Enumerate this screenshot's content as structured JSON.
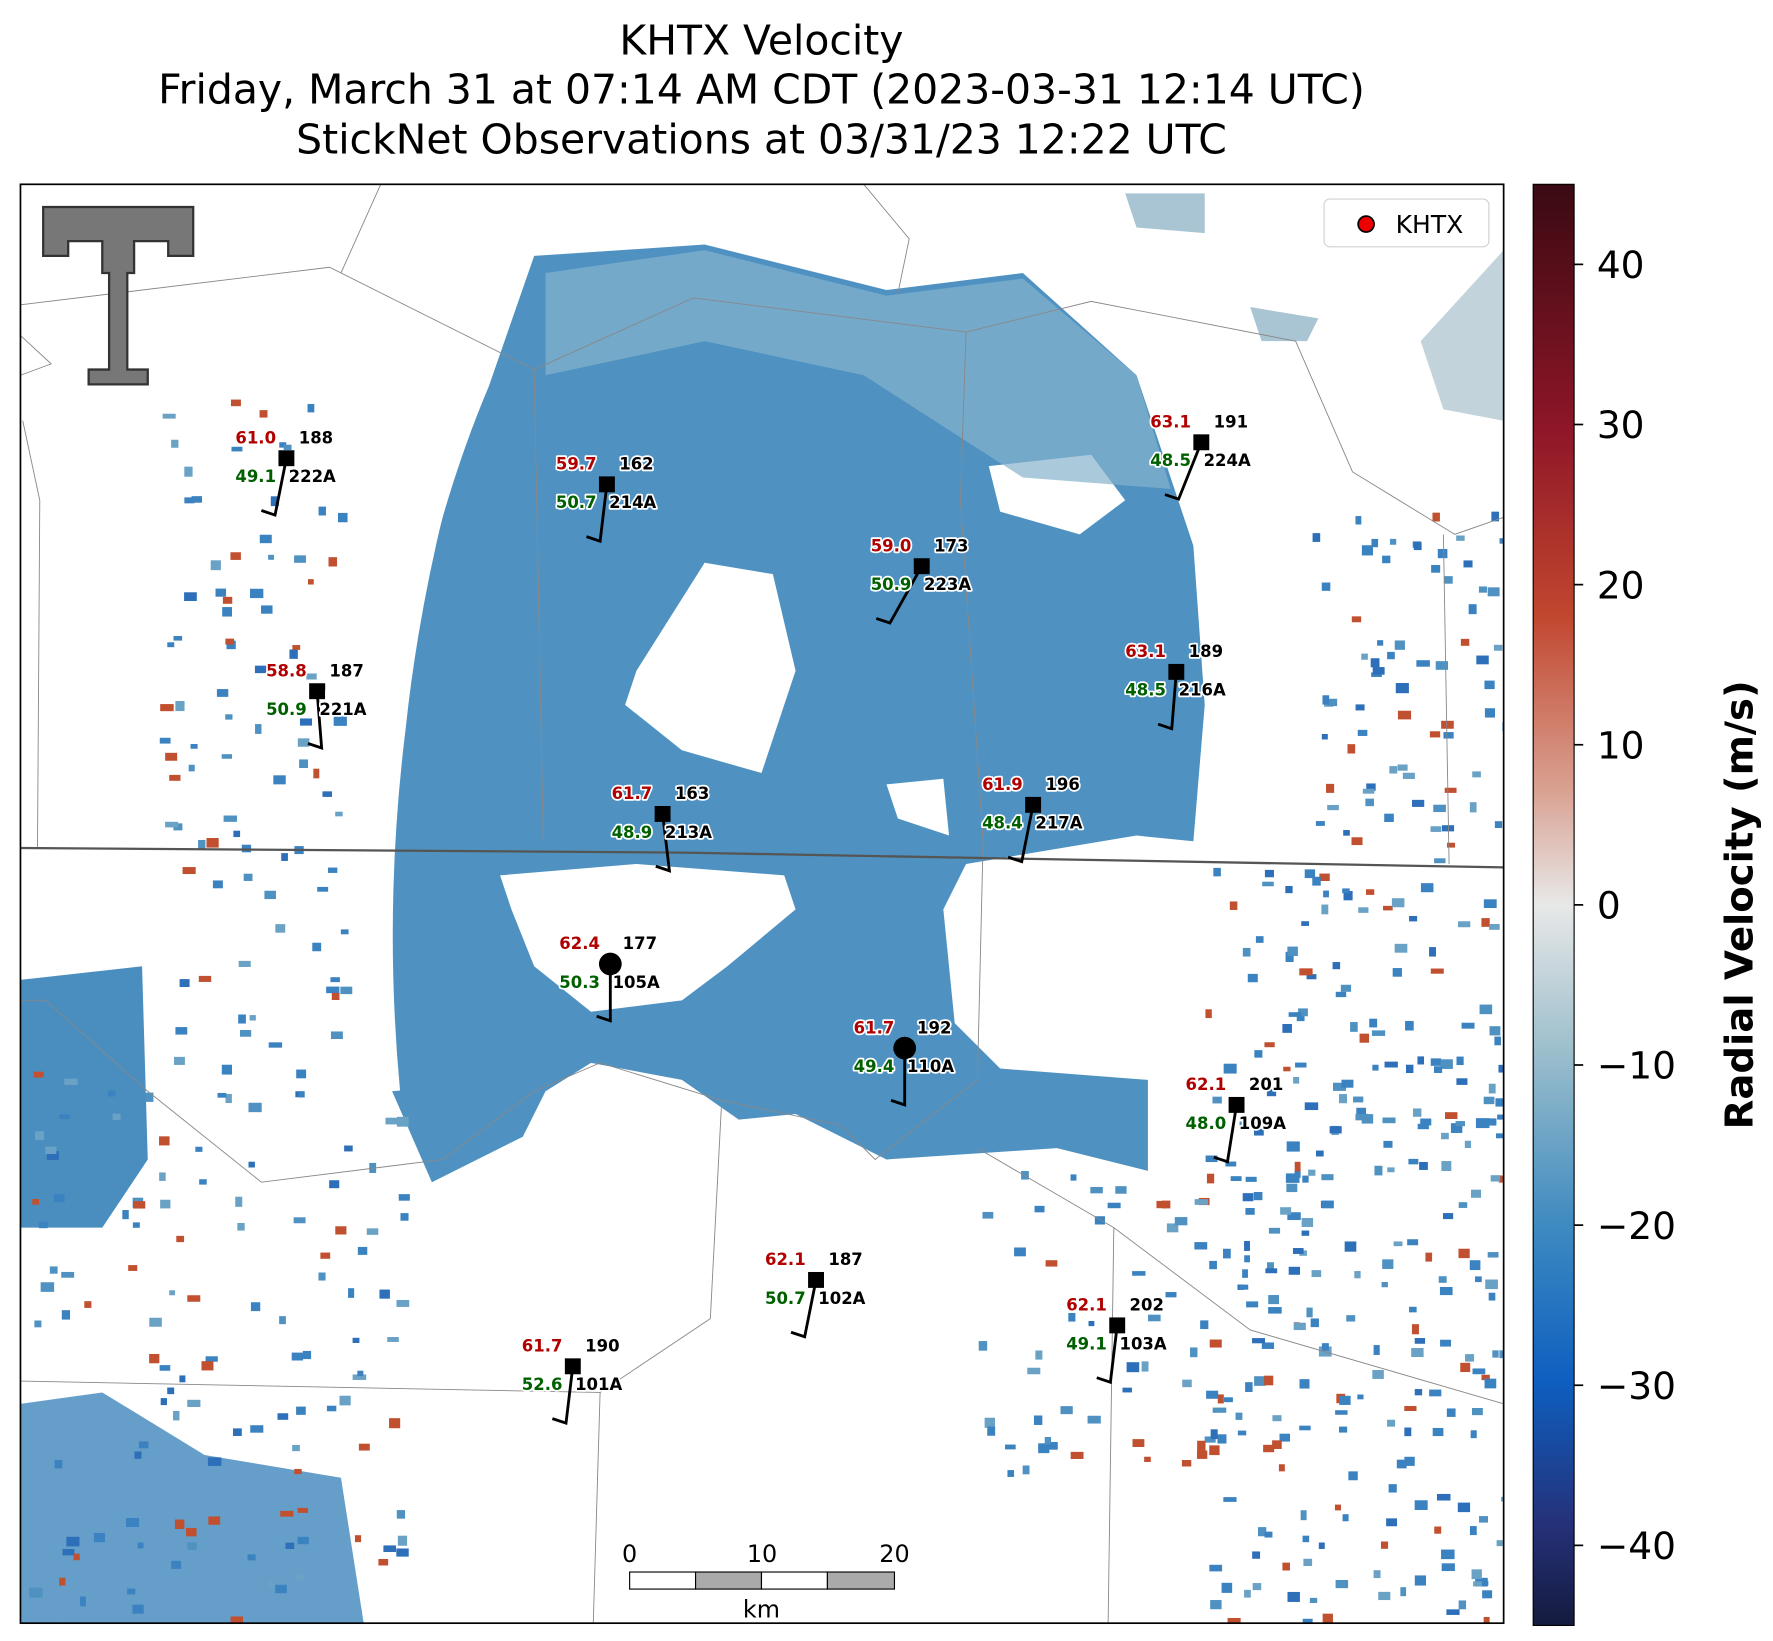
{
  "title": {
    "lines": [
      "KHTX Velocity",
      "Friday, March 31 at 07:14 AM CDT (2023-03-31 12:14 UTC)",
      "StickNet Observations at 03/31/23 12:22 UTC"
    ]
  },
  "legend": {
    "label": "KHTX"
  },
  "colorbar": {
    "label": "Radial Velocity (m/s)",
    "lim": [
      -45,
      45
    ],
    "ticks": [
      {
        "value": 40,
        "label": "40"
      },
      {
        "value": 30,
        "label": "30"
      },
      {
        "value": 20,
        "label": "20"
      },
      {
        "value": 10,
        "label": "10"
      },
      {
        "value": 0,
        "label": "0"
      },
      {
        "value": -10,
        "label": "−10"
      },
      {
        "value": -20,
        "label": "−20"
      },
      {
        "value": -30,
        "label": "−30"
      },
      {
        "value": -40,
        "label": "−40"
      }
    ]
  },
  "scalebar": {
    "ticks": [
      0,
      10,
      20
    ],
    "unit": "km"
  },
  "stations": [
    {
      "id": "222A",
      "red": "61.0",
      "green": "49.1",
      "black": "188"
    },
    {
      "id": "214A",
      "red": "59.7",
      "green": "50.7",
      "black": "162"
    },
    {
      "id": "223A",
      "red": "59.0",
      "green": "50.9",
      "black": "173"
    },
    {
      "id": "224A",
      "red": "63.1",
      "green": "48.5",
      "black": "191"
    },
    {
      "id": "221A",
      "red": "58.8",
      "green": "50.9",
      "black": "187"
    },
    {
      "id": "216A",
      "red": "63.1",
      "green": "48.5",
      "black": "189"
    },
    {
      "id": "213A",
      "red": "61.7",
      "green": "48.9",
      "black": "163"
    },
    {
      "id": "217A",
      "red": "61.9",
      "green": "48.4",
      "black": "196"
    },
    {
      "id": "105A",
      "red": "62.4",
      "green": "50.3",
      "black": "177"
    },
    {
      "id": "110A",
      "red": "61.7",
      "green": "49.4",
      "black": "192"
    },
    {
      "id": "109A",
      "red": "62.1",
      "green": "48.0",
      "black": "201"
    },
    {
      "id": "102A",
      "red": "62.1",
      "green": "50.7",
      "black": "187"
    },
    {
      "id": "103A",
      "red": "62.1",
      "green": "49.1",
      "black": "202"
    },
    {
      "id": "101A",
      "red": "61.7",
      "green": "52.6",
      "black": "190"
    }
  ]
}
